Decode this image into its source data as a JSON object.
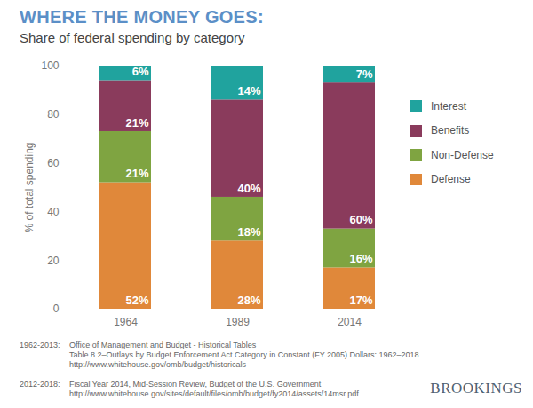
{
  "chart_data": {
    "type": "bar",
    "title": "WHERE THE MONEY GOES:",
    "subtitle": "Share of federal spending by category",
    "y_label": "% of total spending",
    "categories": [
      "1964",
      "1989",
      "2014"
    ],
    "series": [
      {
        "name": "Defense",
        "color": "#e0883a",
        "values": [
          52,
          28,
          17
        ],
        "value_labels": [
          "52%",
          "28%",
          "17%"
        ]
      },
      {
        "name": "Non-Defense",
        "color": "#7fa441",
        "values": [
          21,
          18,
          16
        ],
        "value_labels": [
          "21%",
          "18%",
          "16%"
        ]
      },
      {
        "name": "Benefits",
        "color": "#8a3b5c",
        "values": [
          21,
          40,
          60
        ],
        "value_labels": [
          "21%",
          "40%",
          "60%"
        ]
      },
      {
        "name": "Interest",
        "color": "#20a39e",
        "values": [
          6,
          14,
          7
        ],
        "value_labels": [
          "6%",
          "14%",
          "7%"
        ]
      }
    ],
    "ylim": [
      0,
      100
    ],
    "yticks": [
      0,
      20,
      40,
      60,
      80,
      100
    ],
    "stacked": true,
    "data_labels": true,
    "grid": false,
    "legend": "right",
    "sources": [
      {
        "period": "1962-2013:",
        "lines": [
          "Office of Management and Budget - Historical Tables",
          "Table 8.2–Outlays by Budget Enforcement Act Category in Constant (FY 2005) Dollars: 1962–2018",
          "http://www.whitehouse.gov/omb/budget/historicals"
        ]
      },
      {
        "period": "2012-2018:",
        "lines": [
          "Fiscal Year 2014, Mid-Session Review, Budget of the U.S. Government",
          "http://www.whitehouse.gov/sites/default/files/omb/budget/fy2014/assets/14msr.pdf"
        ]
      }
    ],
    "brand": "BROOKINGS"
  }
}
